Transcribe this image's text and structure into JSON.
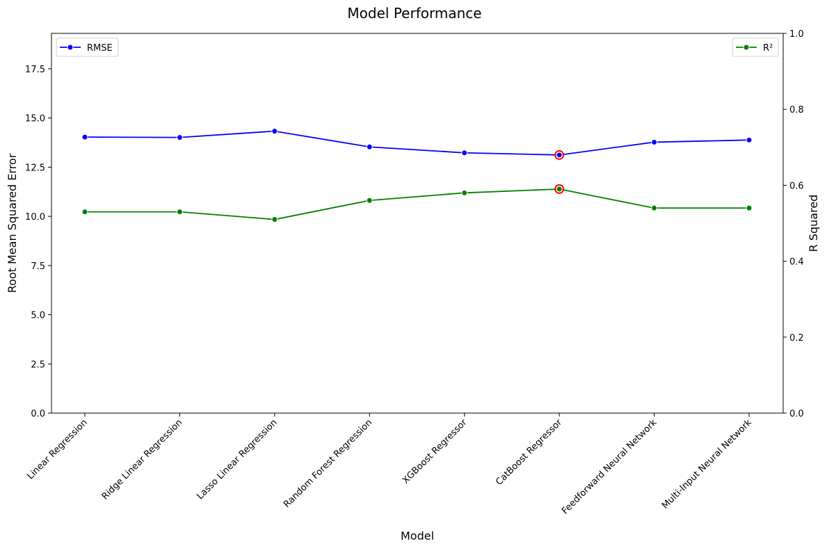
{
  "chart_data": {
    "type": "line",
    "title": "Model Performance",
    "xlabel": "Model",
    "ylabel_left": "Root Mean Squared Error",
    "ylabel_right": "R Squared",
    "categories": [
      "Linear Regression",
      "Ridge Linear Regression",
      "Lasso Linear Regression",
      "Random Forest Regression",
      "XGBoost Regressor",
      "CatBoost Regressor",
      "Feedforward Neural Network",
      "Multi-Input Neural Network"
    ],
    "ylim_left": [
      0,
      19.3
    ],
    "ylim_right": [
      0,
      1.0
    ],
    "yticks_left": [
      "0.0",
      "2.5",
      "5.0",
      "7.5",
      "10.0",
      "12.5",
      "15.0",
      "17.5"
    ],
    "yticks_right": [
      "0.0",
      "0.2",
      "0.4",
      "0.6",
      "0.8",
      "1.0"
    ],
    "grid": false,
    "series": [
      {
        "name": "RMSE",
        "axis": "left",
        "color": "#0000ff",
        "values": [
          14.03,
          14.01,
          14.33,
          13.53,
          13.23,
          13.12,
          13.77,
          13.88
        ],
        "legend_position": "top-left"
      },
      {
        "name": "R²",
        "axis": "right",
        "color": "#008000",
        "values": [
          0.53,
          0.53,
          0.51,
          0.56,
          0.58,
          0.59,
          0.54,
          0.54
        ],
        "legend_position": "top-right"
      }
    ],
    "highlight": {
      "category": "CatBoost Regressor",
      "color": "#ff0000",
      "style": "circle"
    }
  }
}
